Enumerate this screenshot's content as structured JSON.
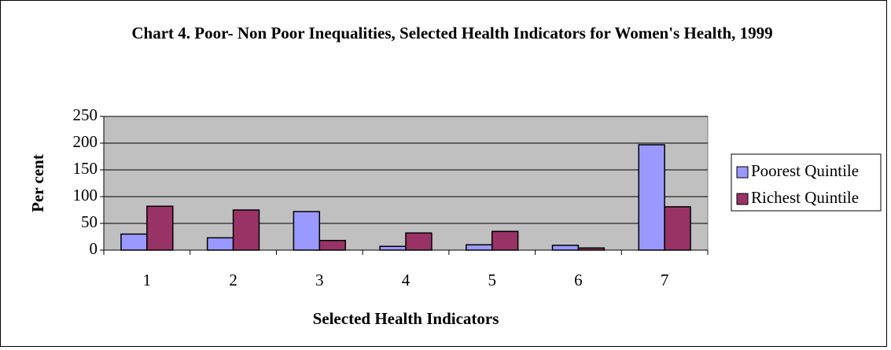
{
  "chart_data": {
    "type": "bar",
    "title": "Chart 4. Poor- Non Poor Inequalities, Selected Health Indicators for Women's Health, 1999",
    "x_label": "Selected Health Indicators",
    "y_label": "Per cent",
    "categories": [
      "1",
      "2",
      "3",
      "4",
      "5",
      "6",
      "7"
    ],
    "series": [
      {
        "name": "Poorest Quintile",
        "color": "#9999ff",
        "values": [
          30,
          23,
          72,
          7,
          10,
          9,
          197
        ]
      },
      {
        "name": "Richest Quintile",
        "color": "#993366",
        "values": [
          82,
          75,
          18,
          32,
          35,
          4,
          81
        ]
      }
    ],
    "ylim": [
      0,
      250
    ],
    "yticks": [
      0,
      50,
      100,
      150,
      200,
      250
    ],
    "grid": true,
    "legend": "right"
  }
}
